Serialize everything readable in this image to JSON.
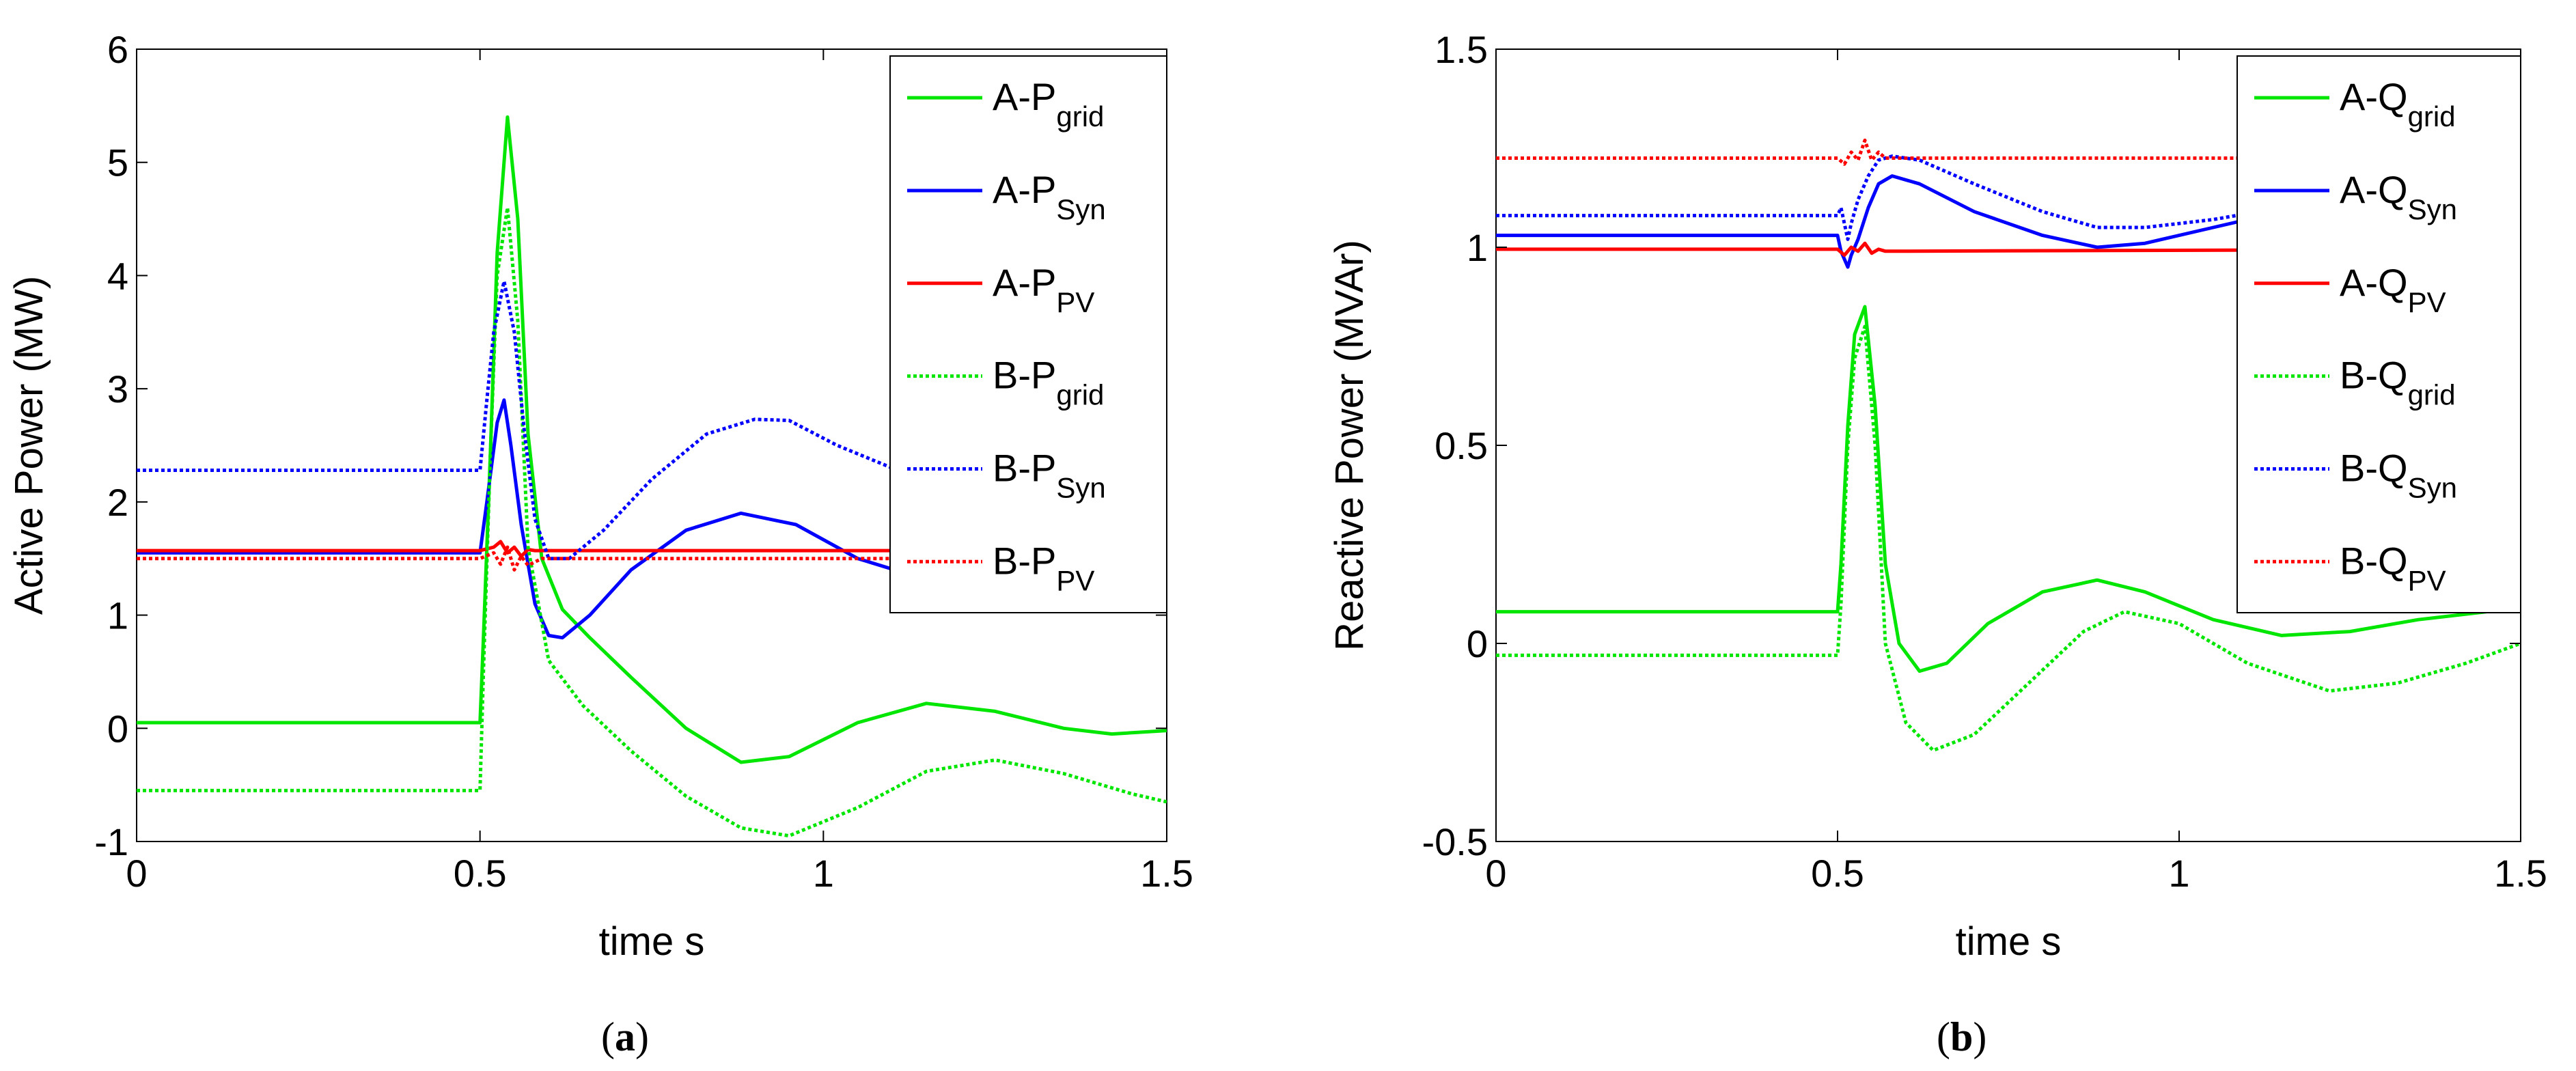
{
  "chart_data": [
    {
      "type": "line",
      "caption_open": "(",
      "caption_letter": "a",
      "caption_close": ")",
      "xlabel": "time s",
      "ylabel": "Active Power (MW)",
      "xlim": [
        0,
        1.5
      ],
      "ylim": [
        -1,
        6
      ],
      "xticks": [
        "0",
        "0.5",
        "1",
        "1.5"
      ],
      "yticks": [
        "-1",
        "0",
        "1",
        "2",
        "3",
        "4",
        "5",
        "6"
      ],
      "legend_position": "top-right",
      "grid": false,
      "series": [
        {
          "name": "A-P",
          "sub": "grid",
          "color": "#00e600",
          "dash": "solid",
          "x": [
            0,
            0.5,
            0.505,
            0.515,
            0.525,
            0.54,
            0.555,
            0.57,
            0.59,
            0.62,
            0.66,
            0.72,
            0.8,
            0.88,
            0.95,
            1.05,
            1.15,
            1.25,
            1.35,
            1.42,
            1.5
          ],
          "y": [
            0.05,
            0.05,
            0.8,
            2.4,
            4.2,
            5.4,
            4.5,
            2.6,
            1.5,
            1.05,
            0.8,
            0.45,
            0.0,
            -0.3,
            -0.25,
            0.05,
            0.22,
            0.15,
            0.0,
            -0.05,
            -0.02
          ]
        },
        {
          "name": "A-P",
          "sub": "Syn",
          "color": "#0000ff",
          "dash": "solid",
          "x": [
            0,
            0.5,
            0.51,
            0.525,
            0.535,
            0.545,
            0.56,
            0.58,
            0.6,
            0.62,
            0.66,
            0.72,
            0.8,
            0.88,
            0.96,
            1.05,
            1.12,
            1.2,
            1.3,
            1.4,
            1.5
          ],
          "y": [
            1.55,
            1.55,
            2.0,
            2.7,
            2.9,
            2.5,
            1.8,
            1.1,
            0.82,
            0.8,
            1.0,
            1.4,
            1.75,
            1.9,
            1.8,
            1.5,
            1.37,
            1.4,
            1.55,
            1.62,
            1.6
          ]
        },
        {
          "name": "A-P",
          "sub": "PV",
          "color": "#ff0000",
          "dash": "solid",
          "x": [
            0,
            0.5,
            0.52,
            0.53,
            0.54,
            0.55,
            0.56,
            0.57,
            0.58,
            0.6,
            1.5
          ],
          "y": [
            1.57,
            1.57,
            1.6,
            1.65,
            1.55,
            1.6,
            1.52,
            1.58,
            1.57,
            1.57,
            1.57
          ]
        },
        {
          "name": "B-P",
          "sub": "grid",
          "color": "#00e600",
          "dash": "dotted",
          "x": [
            0,
            0.5,
            0.505,
            0.515,
            0.525,
            0.54,
            0.555,
            0.57,
            0.6,
            0.65,
            0.72,
            0.8,
            0.88,
            0.95,
            1.05,
            1.15,
            1.25,
            1.35,
            1.45,
            1.5
          ],
          "y": [
            -0.55,
            -0.55,
            0.5,
            2.4,
            4.0,
            4.6,
            3.6,
            1.6,
            0.6,
            0.2,
            -0.2,
            -0.6,
            -0.88,
            -0.95,
            -0.7,
            -0.38,
            -0.28,
            -0.4,
            -0.58,
            -0.65
          ]
        },
        {
          "name": "B-P",
          "sub": "Syn",
          "color": "#0000ff",
          "dash": "dotted",
          "x": [
            0,
            0.5,
            0.51,
            0.52,
            0.535,
            0.55,
            0.565,
            0.58,
            0.6,
            0.63,
            0.68,
            0.75,
            0.83,
            0.9,
            0.95,
            1.02,
            1.1,
            1.18,
            1.25,
            1.35,
            1.45,
            1.5
          ],
          "y": [
            2.28,
            2.28,
            2.9,
            3.5,
            3.95,
            3.5,
            2.6,
            1.85,
            1.5,
            1.5,
            1.75,
            2.2,
            2.6,
            2.73,
            2.72,
            2.5,
            2.3,
            2.22,
            2.25,
            2.35,
            2.42,
            2.43
          ]
        },
        {
          "name": "B-P",
          "sub": "PV",
          "color": "#ff0000",
          "dash": "dotted",
          "x": [
            0,
            0.5,
            0.52,
            0.53,
            0.54,
            0.55,
            0.56,
            0.57,
            0.59,
            1.5
          ],
          "y": [
            1.5,
            1.5,
            1.55,
            1.45,
            1.6,
            1.4,
            1.52,
            1.44,
            1.5,
            1.5
          ]
        }
      ]
    },
    {
      "type": "line",
      "caption_open": "(",
      "caption_letter": "b",
      "caption_close": ")",
      "xlabel": "time s",
      "ylabel": "Reactive Power (MVAr)",
      "xlim": [
        0,
        1.5
      ],
      "ylim": [
        -0.5,
        1.5
      ],
      "xticks": [
        "0",
        "0.5",
        "1",
        "1.5"
      ],
      "yticks": [
        "-0.5",
        "0",
        "0.5",
        "1",
        "1.5"
      ],
      "legend_position": "top-right",
      "grid": false,
      "series": [
        {
          "name": "A-Q",
          "sub": "grid",
          "color": "#00e600",
          "dash": "solid",
          "x": [
            0,
            0.5,
            0.505,
            0.515,
            0.525,
            0.54,
            0.555,
            0.57,
            0.59,
            0.62,
            0.66,
            0.72,
            0.8,
            0.88,
            0.95,
            1.05,
            1.15,
            1.25,
            1.35,
            1.45,
            1.5
          ],
          "y": [
            0.08,
            0.08,
            0.2,
            0.55,
            0.78,
            0.85,
            0.6,
            0.2,
            0.0,
            -0.07,
            -0.05,
            0.05,
            0.13,
            0.16,
            0.13,
            0.06,
            0.02,
            0.03,
            0.06,
            0.08,
            0.09
          ]
        },
        {
          "name": "A-Q",
          "sub": "Syn",
          "color": "#0000ff",
          "dash": "solid",
          "x": [
            0,
            0.5,
            0.505,
            0.515,
            0.52,
            0.53,
            0.545,
            0.56,
            0.58,
            0.62,
            0.7,
            0.8,
            0.88,
            0.95,
            1.05,
            1.15,
            1.25,
            1.35,
            1.45,
            1.5
          ],
          "y": [
            1.03,
            1.03,
            0.99,
            0.95,
            0.98,
            1.02,
            1.1,
            1.16,
            1.18,
            1.16,
            1.09,
            1.03,
            1.0,
            1.01,
            1.05,
            1.09,
            1.1,
            1.08,
            1.06,
            1.05
          ]
        },
        {
          "name": "A-Q",
          "sub": "PV",
          "color": "#ff0000",
          "dash": "solid",
          "x": [
            0,
            0.5,
            0.51,
            0.52,
            0.53,
            0.54,
            0.55,
            0.56,
            0.57,
            1.5
          ],
          "y": [
            0.995,
            0.995,
            0.98,
            1.0,
            0.99,
            1.01,
            0.985,
            0.995,
            0.99,
            0.995
          ]
        },
        {
          "name": "B-Q",
          "sub": "grid",
          "color": "#00e600",
          "dash": "dotted",
          "x": [
            0,
            0.5,
            0.505,
            0.515,
            0.525,
            0.54,
            0.555,
            0.57,
            0.6,
            0.64,
            0.7,
            0.78,
            0.86,
            0.92,
            1.0,
            1.1,
            1.22,
            1.32,
            1.42,
            1.5
          ],
          "y": [
            -0.03,
            -0.03,
            0.1,
            0.5,
            0.72,
            0.8,
            0.5,
            0.0,
            -0.2,
            -0.27,
            -0.23,
            -0.1,
            0.03,
            0.08,
            0.05,
            -0.05,
            -0.12,
            -0.1,
            -0.05,
            0.0
          ]
        },
        {
          "name": "B-Q",
          "sub": "Syn",
          "color": "#0000ff",
          "dash": "dotted",
          "x": [
            0,
            0.5,
            0.505,
            0.515,
            0.52,
            0.53,
            0.545,
            0.56,
            0.58,
            0.62,
            0.7,
            0.8,
            0.88,
            0.95,
            1.05,
            1.15,
            1.25,
            1.35,
            1.45,
            1.5
          ],
          "y": [
            1.08,
            1.08,
            1.1,
            1.02,
            1.06,
            1.12,
            1.18,
            1.22,
            1.23,
            1.22,
            1.16,
            1.09,
            1.05,
            1.05,
            1.07,
            1.1,
            1.11,
            1.1,
            1.08,
            1.07
          ]
        },
        {
          "name": "B-Q",
          "sub": "PV",
          "color": "#ff0000",
          "dash": "dotted",
          "x": [
            0,
            0.5,
            0.51,
            0.52,
            0.53,
            0.54,
            0.55,
            0.56,
            0.57,
            1.5
          ],
          "y": [
            1.225,
            1.225,
            1.21,
            1.24,
            1.22,
            1.27,
            1.22,
            1.24,
            1.225,
            1.225
          ]
        }
      ]
    }
  ]
}
